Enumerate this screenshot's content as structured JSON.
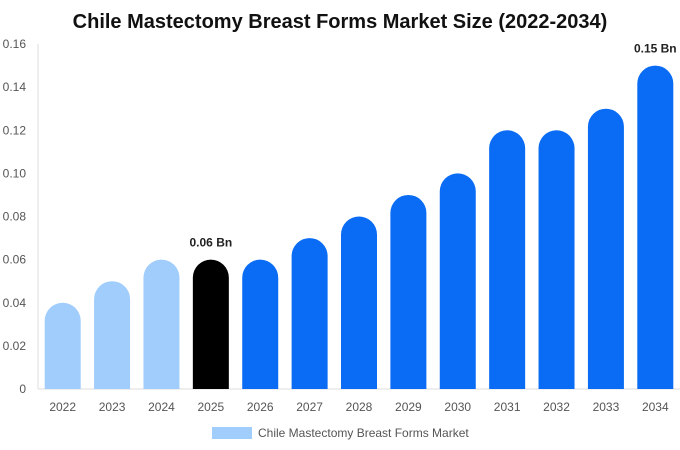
{
  "chart_data": {
    "type": "bar",
    "title": "Chile Mastectomy Breast Forms Market Size (2022-2034)",
    "xlabel": "",
    "ylabel": "",
    "categories": [
      "2022",
      "2023",
      "2024",
      "2025",
      "2026",
      "2027",
      "2028",
      "2029",
      "2030",
      "2031",
      "2032",
      "2033",
      "2034"
    ],
    "series": [
      {
        "name": "Chile Mastectomy Breast Forms Market",
        "values": [
          0.04,
          0.05,
          0.06,
          0.06,
          0.06,
          0.07,
          0.08,
          0.09,
          0.1,
          0.12,
          0.12,
          0.13,
          0.15
        ]
      }
    ],
    "ylim": [
      0,
      0.16
    ],
    "yticks": [
      "0",
      "0.02",
      "0.04",
      "0.06",
      "0.08",
      "0.10",
      "0.12",
      "0.14",
      "0.16"
    ],
    "data_labels": [
      {
        "category": "2025",
        "text": "0.06 Bn"
      },
      {
        "category": "2034",
        "text": "0.15 Bn"
      }
    ],
    "bar_colors": {
      "historical": "#a0cdfc",
      "current": "#000000",
      "forecast": "#0a6cf5"
    },
    "legend_color": "#a0cdfc",
    "grid": false,
    "legend_position": "bottom-center"
  }
}
